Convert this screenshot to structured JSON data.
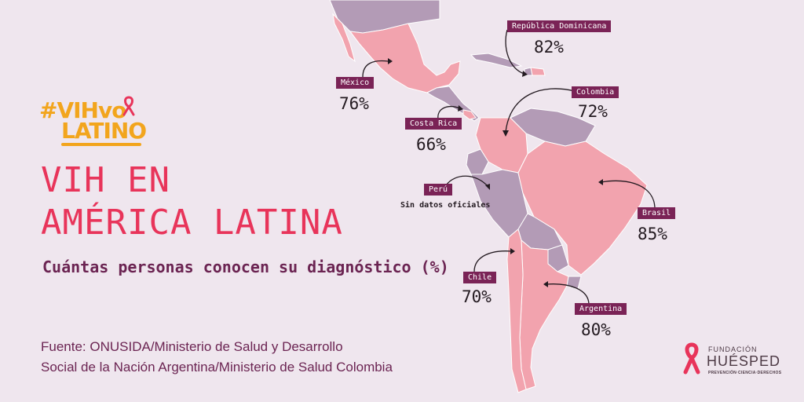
{
  "hashtag": {
    "line1": "#VIHvo",
    "line2": "LATINO"
  },
  "title": {
    "line1": "VIH EN",
    "line2": "AMÉRICA LATINA"
  },
  "subtitle": "Cuántas personas conocen su diagnóstico (%)",
  "source": {
    "line1": "Fuente: ONUSIDA/Ministerio de Salud y Desarrollo",
    "line2": "Social de la Nación Argentina/Ministerio de Salud Colombia"
  },
  "colors": {
    "background": "#efe6ee",
    "highlight": "#f2a3ae",
    "other": "#b39bb6",
    "tag": "#7a2356",
    "title": "#e8345a",
    "accent": "#f2a51d"
  },
  "countries": [
    {
      "name": "México",
      "value": "76%"
    },
    {
      "name": "República Dominicana",
      "value": "82%"
    },
    {
      "name": "Costa Rica",
      "value": "66%"
    },
    {
      "name": "Colombia",
      "value": "72%"
    },
    {
      "name": "Perú",
      "note": "Sin datos oficiales"
    },
    {
      "name": "Brasil",
      "value": "85%"
    },
    {
      "name": "Chile",
      "value": "70%"
    },
    {
      "name": "Argentina",
      "value": "80%"
    }
  ],
  "logo": {
    "line1": "FUNDACIÓN",
    "line2": "HUÉSPED",
    "tagline": "PREVENCIÓN·CIENCIA·DERECHOS"
  }
}
